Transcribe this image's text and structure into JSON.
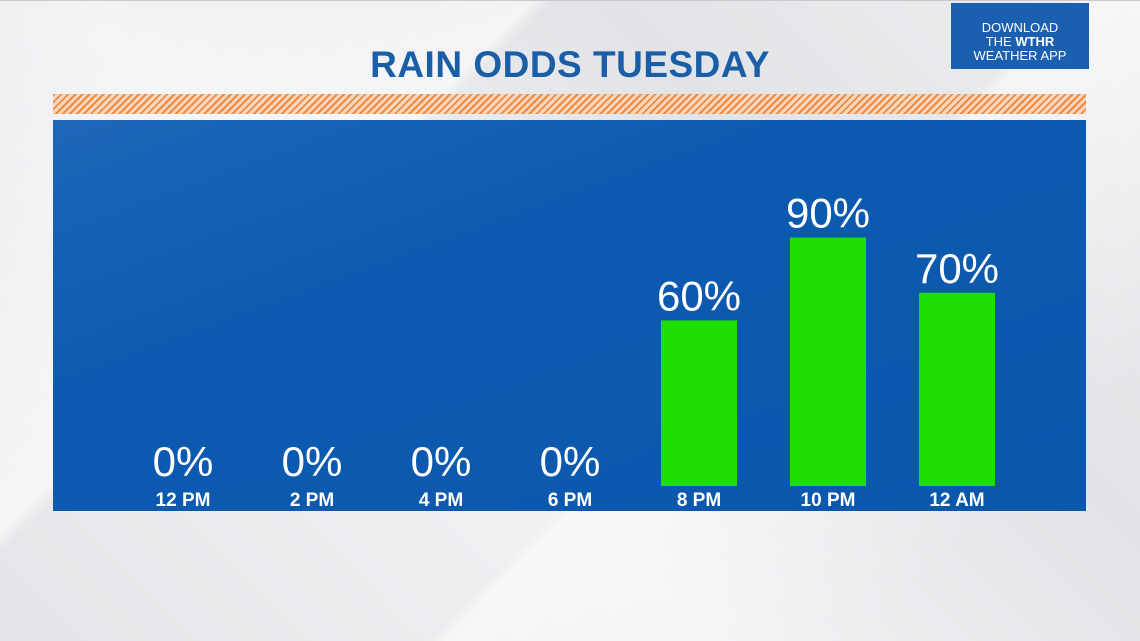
{
  "header": {
    "title": "RAIN ODDS TUESDAY"
  },
  "badge": {
    "line1": "DOWNLOAD",
    "line2_prefix": "THE ",
    "line2_brand": "WTHR",
    "line3": "WEATHER APP"
  },
  "colors": {
    "panel": "#0a57ac",
    "bar": "#1ee000",
    "title": "#1a5ea8",
    "stripe": "#f08a3c"
  },
  "chart_data": {
    "type": "bar",
    "title": "RAIN ODDS TUESDAY",
    "categories": [
      "12 PM",
      "2 PM",
      "4 PM",
      "6 PM",
      "8 PM",
      "10 PM",
      "12 AM"
    ],
    "values": [
      0,
      0,
      0,
      0,
      60,
      90,
      70
    ],
    "value_labels": [
      "0%",
      "0%",
      "0%",
      "0%",
      "60%",
      "90%",
      "70%"
    ],
    "ylim": [
      0,
      100
    ],
    "grid": false,
    "legend": "none"
  }
}
